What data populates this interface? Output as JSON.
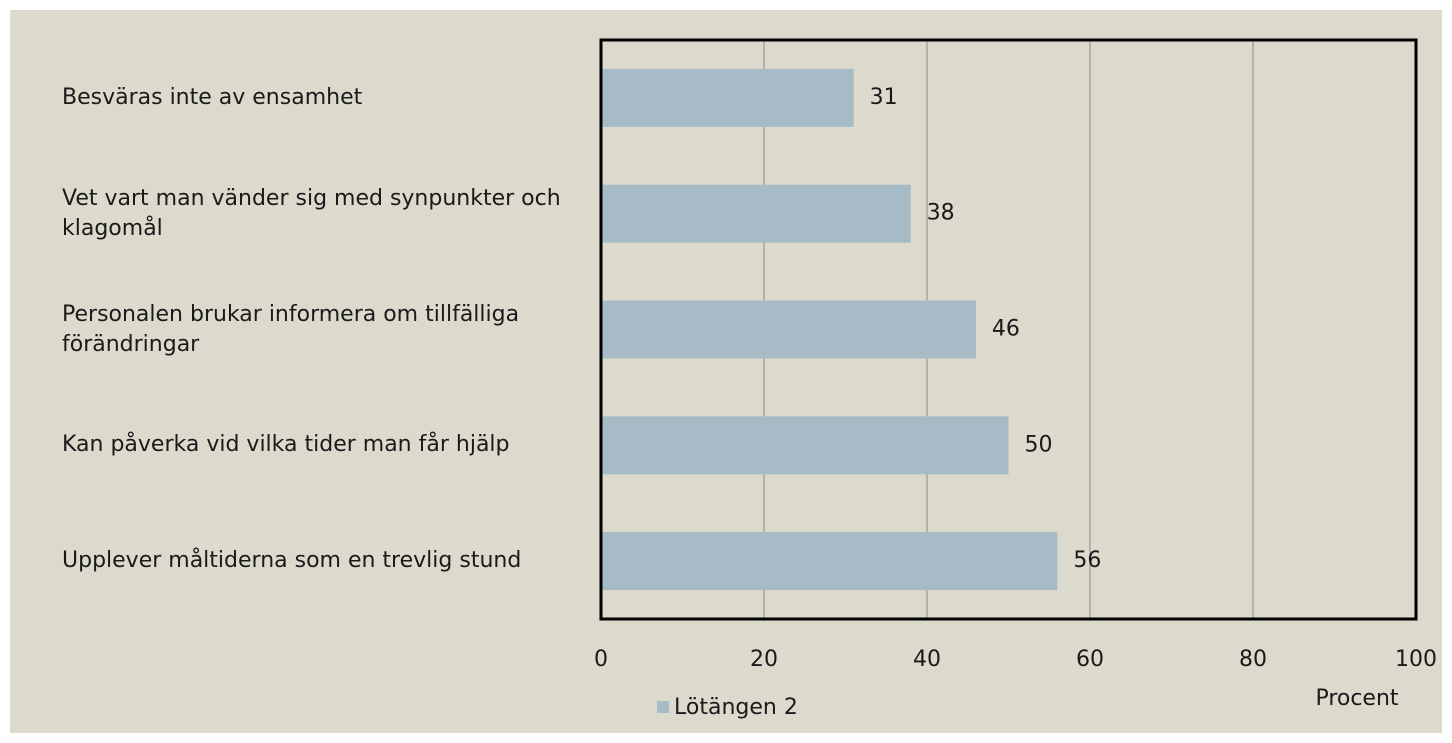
{
  "chart_data": {
    "type": "bar",
    "orientation": "horizontal",
    "categories": [
      "Besväras inte av ensamhet",
      "Vet vart man vänder sig med synpunkter och klagomål",
      "Personalen brukar informera om tillfälliga förändringar",
      "Kan påverka vid vilka tider man får hjälp",
      "Upplever måltiderna som en trevlig stund"
    ],
    "series": [
      {
        "name": "Lötängen 2",
        "color": "#a7bbc6",
        "values": [
          31,
          38,
          46,
          50,
          56
        ]
      }
    ],
    "xlim": [
      0,
      100
    ],
    "xticks": [
      0,
      20,
      40,
      60,
      80,
      100
    ],
    "x_axis_label": "Procent",
    "grid": true,
    "legend": "bottom"
  }
}
